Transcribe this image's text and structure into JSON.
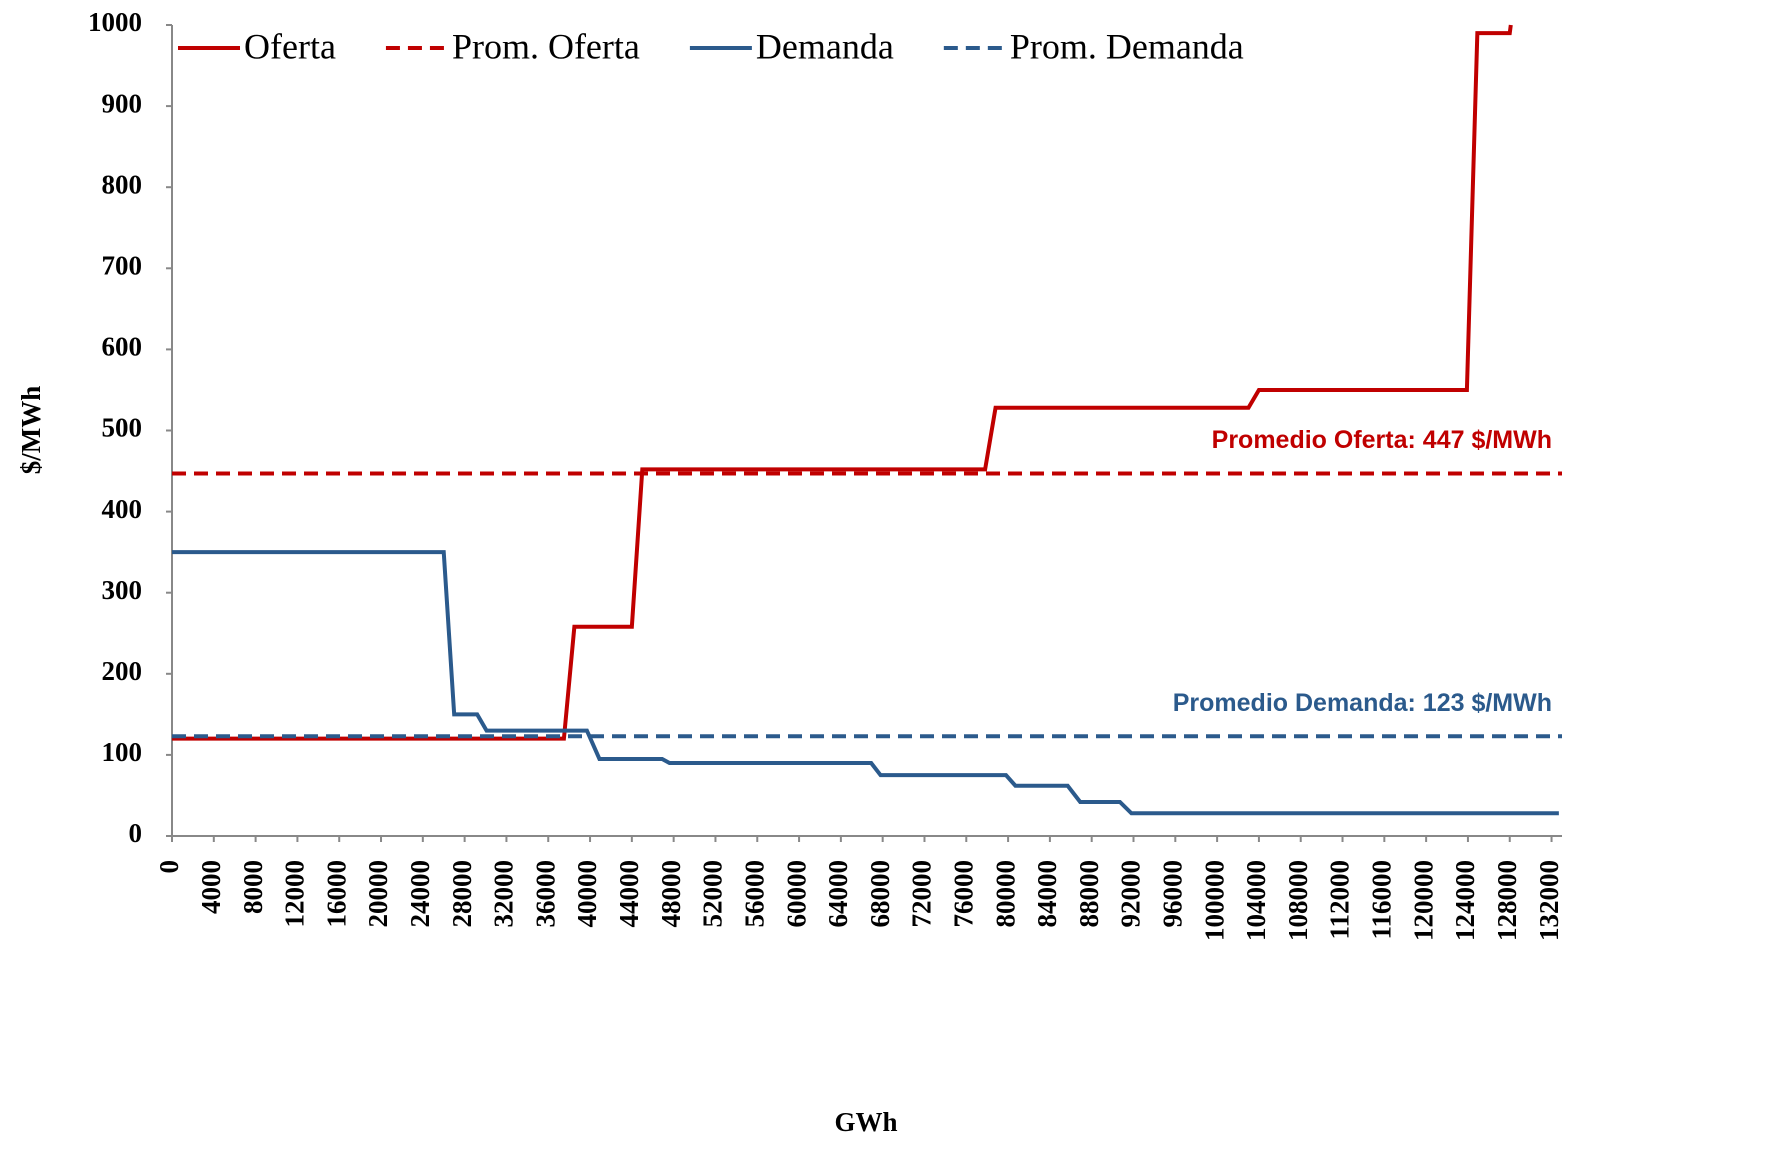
{
  "chart_data": {
    "type": "line",
    "xlabel": "GWh",
    "ylabel": "$/MWh",
    "xlim": [
      0,
      133000
    ],
    "ylim": [
      0,
      1000
    ],
    "xticks": [
      0,
      4000,
      8000,
      12000,
      16000,
      20000,
      24000,
      28000,
      32000,
      36000,
      40000,
      44000,
      48000,
      52000,
      56000,
      60000,
      64000,
      68000,
      72000,
      76000,
      80000,
      84000,
      88000,
      92000,
      96000,
      100000,
      104000,
      108000,
      112000,
      116000,
      120000,
      124000,
      128000,
      132000
    ],
    "yticks": [
      0,
      100,
      200,
      300,
      400,
      500,
      600,
      700,
      800,
      900,
      1000
    ],
    "grid": false,
    "legend": "top",
    "series": [
      {
        "name": "Oferta",
        "color": "#c00000",
        "dashed": false,
        "x": [
          0,
          37500,
          38500,
          44000,
          45000,
          77800,
          78800,
          103000,
          104000,
          123900,
          124900,
          128000,
          128100
        ],
        "values": [
          120,
          120,
          258,
          258,
          452,
          452,
          528,
          528,
          550,
          550,
          990,
          990,
          1000
        ]
      },
      {
        "name": "Prom. Oferta",
        "color": "#c00000",
        "dashed": true,
        "x": [
          0,
          133000
        ],
        "values": [
          447,
          447
        ]
      },
      {
        "name": "Demanda",
        "color": "#2b5a8c",
        "dashed": false,
        "x": [
          0,
          26000,
          27000,
          29200,
          30100,
          39700,
          40900,
          46900,
          47600,
          66900,
          67800,
          79800,
          80700,
          85700,
          86900,
          90700,
          91800,
          132700
        ],
        "values": [
          350,
          350,
          150,
          150,
          130,
          130,
          95,
          95,
          90,
          90,
          75,
          75,
          62,
          62,
          42,
          42,
          28,
          28
        ]
      },
      {
        "name": "Prom. Demanda",
        "color": "#2b5a8c",
        "dashed": true,
        "x": [
          0,
          133000
        ],
        "values": [
          123,
          123
        ]
      }
    ],
    "annotations": [
      {
        "text": "Promedio Oferta: 447 $/MWh",
        "series": 1,
        "color": "#c00000"
      },
      {
        "text": "Promedio Demanda: 123 $/MWh",
        "series": 3,
        "color": "#2b5a8c"
      }
    ]
  }
}
